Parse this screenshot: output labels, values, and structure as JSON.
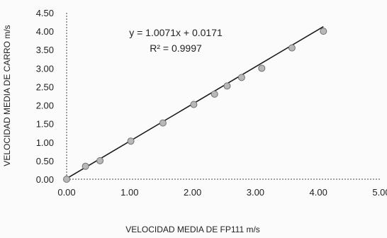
{
  "chart_data": {
    "type": "scatter",
    "title": "",
    "xlabel": "VELOCIDAD MEDIA DE FP111 m/s",
    "ylabel": "VELOCIDAD MEDIA DE CARRO m/s",
    "xlim": [
      0,
      5
    ],
    "ylim": [
      0,
      4.5
    ],
    "x_ticks": [
      "0.00",
      "1.00",
      "2.00",
      "3.00",
      "4.00",
      "5.00"
    ],
    "y_ticks": [
      "0.00",
      "0.50",
      "1.00",
      "1.50",
      "2.00",
      "2.50",
      "3.00",
      "3.50",
      "4.00",
      "4.50"
    ],
    "grid": false,
    "legend": "none",
    "series": [
      {
        "x": [
          0.0,
          0.3,
          0.53,
          1.02,
          1.53,
          2.02,
          2.35,
          2.55,
          2.78,
          3.1,
          3.58,
          4.08
        ],
        "y": [
          0.0,
          0.35,
          0.5,
          1.03,
          1.52,
          2.02,
          2.3,
          2.52,
          2.75,
          3.0,
          3.55,
          4.0
        ]
      }
    ],
    "trendline": {
      "slope": 1.0071,
      "intercept": 0.0171,
      "equation": "y = 1.0071x + 0.0171",
      "r2": "R² = 0.9997"
    },
    "colors": {
      "line": "#1a1a1a",
      "marker_fill": "#b8b8b8",
      "marker_stroke": "#707070",
      "axis": "#444444"
    }
  }
}
